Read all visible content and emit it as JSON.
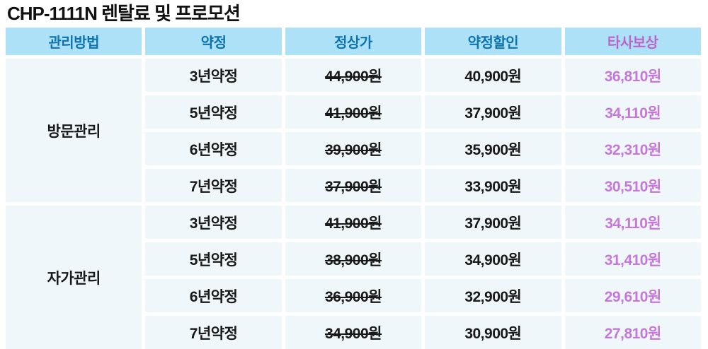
{
  "title": "CHP-1111N 렌탈료 및 프로모션",
  "colors": {
    "header_bg": "#ace1f8",
    "header_text": "#0d73ae",
    "header_highlight_text": "#bb64cb",
    "cell_bg": "#eff7fb",
    "body_text": "#191919",
    "reward_text": "#c478d8"
  },
  "table": {
    "headers": [
      {
        "label": "관리방법"
      },
      {
        "label": "약정"
      },
      {
        "label": "정상가"
      },
      {
        "label": "약정할인"
      },
      {
        "label": "타사보상"
      }
    ],
    "groups": [
      {
        "management": "방문관리",
        "rows": [
          {
            "term": "3년약정",
            "list_price": "44,900원",
            "contract_discount": "40,900원",
            "competitor_reward": "36,810원"
          },
          {
            "term": "5년약정",
            "list_price": "41,900원",
            "contract_discount": "37,900원",
            "competitor_reward": "34,110원"
          },
          {
            "term": "6년약정",
            "list_price": "39,900원",
            "contract_discount": "35,900원",
            "competitor_reward": "32,310원"
          },
          {
            "term": "7년약정",
            "list_price": "37,900원",
            "contract_discount": "33,900원",
            "competitor_reward": "30,510원"
          }
        ]
      },
      {
        "management": "자가관리",
        "rows": [
          {
            "term": "3년약정",
            "list_price": "41,900원",
            "contract_discount": "37,900원",
            "competitor_reward": "34,110원"
          },
          {
            "term": "5년약정",
            "list_price": "38,900원",
            "contract_discount": "34,900원",
            "competitor_reward": "31,410원"
          },
          {
            "term": "6년약정",
            "list_price": "36,900원",
            "contract_discount": "32,900원",
            "competitor_reward": "29,610원"
          },
          {
            "term": "7년약정",
            "list_price": "34,900원",
            "contract_discount": "30,900원",
            "competitor_reward": "27,810원"
          }
        ]
      }
    ]
  }
}
